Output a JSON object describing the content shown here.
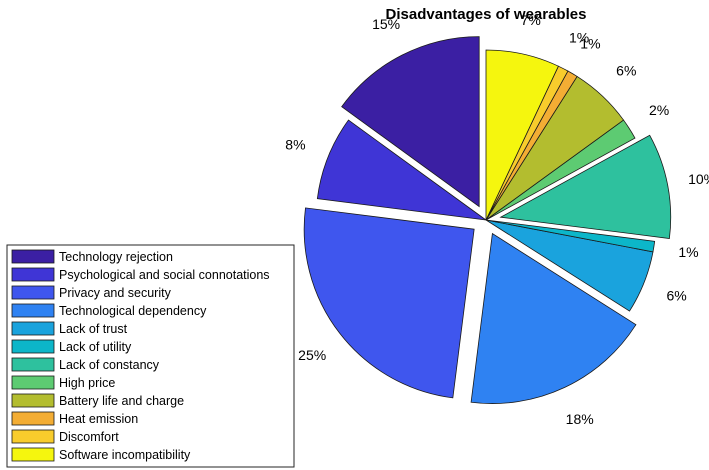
{
  "chart_data": {
    "type": "pie",
    "title": "Disadvantages of wearables",
    "legend_position": "bottom-left",
    "slices": [
      {
        "label": "Technology rejection",
        "value": 15,
        "display": "15%",
        "color": "#3b1fa3",
        "exploded": true
      },
      {
        "label": "Psychological and social connotations",
        "value": 8,
        "display": "8%",
        "color": "#3f35d6",
        "exploded": false
      },
      {
        "label": "Privacy and security",
        "value": 25,
        "display": "25%",
        "color": "#3f56ee",
        "exploded": true
      },
      {
        "label": "Technological dependency",
        "value": 18,
        "display": "18%",
        "color": "#2f82f2",
        "exploded": true
      },
      {
        "label": "Lack of trust",
        "value": 6,
        "display": "6%",
        "color": "#1aa3dd",
        "exploded": false
      },
      {
        "label": "Lack of utility",
        "value": 1,
        "display": "1%",
        "color": "#0cb6c9",
        "exploded": false
      },
      {
        "label": "Lack of constancy",
        "value": 10,
        "display": "10%",
        "color": "#2ec19e",
        "exploded": true
      },
      {
        "label": "High price",
        "value": 2,
        "display": "2%",
        "color": "#5dcb72",
        "exploded": false
      },
      {
        "label": "Battery life and charge",
        "value": 6,
        "display": "6%",
        "color": "#b3bd2f",
        "exploded": false
      },
      {
        "label": "Heat emission",
        "value": 1,
        "display": "1%",
        "color": "#f3ad34",
        "exploded": false
      },
      {
        "label": "Discomfort",
        "value": 1,
        "display": "1%",
        "color": "#f8cc2c",
        "exploded": false
      },
      {
        "label": "Software incompatibility",
        "value": 7,
        "display": "7%",
        "color": "#f5f60e",
        "exploded": false
      }
    ]
  }
}
